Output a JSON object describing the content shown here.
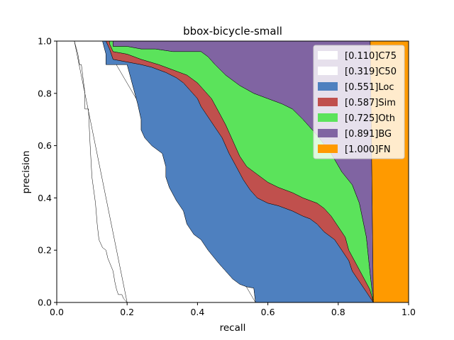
{
  "chart_data": {
    "type": "area",
    "title": "bbox-bicycle-small",
    "xlabel": "recall",
    "ylabel": "precision",
    "xlim": [
      0,
      1
    ],
    "ylim": [
      0,
      1
    ],
    "x_ticks": [
      "0.0",
      "0.2",
      "0.4",
      "0.6",
      "0.8",
      "1.0"
    ],
    "y_ticks": [
      "0.0",
      "0.2",
      "0.4",
      "0.6",
      "0.8",
      "1.0"
    ],
    "grid": false,
    "legend_position": "top-right",
    "series": [
      {
        "name": "[0.110]C75",
        "color": "#ffffff",
        "points": [
          [
            0.05,
            1.0
          ],
          [
            0.06,
            0.95
          ],
          [
            0.065,
            0.91
          ],
          [
            0.07,
            0.91
          ],
          [
            0.08,
            0.8
          ],
          [
            0.08,
            0.74
          ],
          [
            0.09,
            0.74
          ],
          [
            0.095,
            0.6
          ],
          [
            0.1,
            0.48
          ],
          [
            0.11,
            0.38
          ],
          [
            0.115,
            0.3
          ],
          [
            0.12,
            0.24
          ],
          [
            0.13,
            0.21
          ],
          [
            0.14,
            0.2
          ],
          [
            0.145,
            0.17
          ],
          [
            0.16,
            0.12
          ],
          [
            0.165,
            0.08
          ],
          [
            0.17,
            0.05
          ],
          [
            0.175,
            0.03
          ],
          [
            0.185,
            0.03
          ],
          [
            0.19,
            0.015
          ],
          [
            0.2,
            0.0
          ]
        ]
      },
      {
        "name": "[0.319]C50",
        "color": "#ffffff",
        "points": [
          [
            0.13,
            1.0
          ],
          [
            0.14,
            0.95
          ],
          [
            0.14,
            0.91
          ],
          [
            0.2,
            0.91
          ],
          [
            0.21,
            0.86
          ],
          [
            0.22,
            0.81
          ],
          [
            0.23,
            0.76
          ],
          [
            0.24,
            0.7
          ],
          [
            0.24,
            0.66
          ],
          [
            0.25,
            0.63
          ],
          [
            0.27,
            0.6
          ],
          [
            0.3,
            0.57
          ],
          [
            0.31,
            0.52
          ],
          [
            0.31,
            0.48
          ],
          [
            0.32,
            0.44
          ],
          [
            0.34,
            0.39
          ],
          [
            0.36,
            0.35
          ],
          [
            0.37,
            0.3
          ],
          [
            0.39,
            0.26
          ],
          [
            0.41,
            0.24
          ],
          [
            0.43,
            0.2
          ],
          [
            0.46,
            0.15
          ],
          [
            0.48,
            0.12
          ],
          [
            0.5,
            0.09
          ],
          [
            0.52,
            0.07
          ],
          [
            0.54,
            0.06
          ],
          [
            0.56,
            0.055
          ],
          [
            0.565,
            0.0
          ]
        ]
      },
      {
        "name": "[0.551]Loc",
        "color": "#4e80bf",
        "points": [
          [
            0.13,
            1.0
          ],
          [
            0.14,
            0.95
          ],
          [
            0.14,
            0.91
          ],
          [
            0.2,
            0.91
          ],
          [
            0.21,
            0.86
          ],
          [
            0.22,
            0.81
          ],
          [
            0.23,
            0.76
          ],
          [
            0.24,
            0.7
          ],
          [
            0.24,
            0.66
          ],
          [
            0.25,
            0.63
          ],
          [
            0.27,
            0.6
          ],
          [
            0.3,
            0.57
          ],
          [
            0.31,
            0.52
          ],
          [
            0.31,
            0.48
          ],
          [
            0.32,
            0.44
          ],
          [
            0.34,
            0.39
          ],
          [
            0.36,
            0.35
          ],
          [
            0.37,
            0.3
          ],
          [
            0.39,
            0.26
          ],
          [
            0.41,
            0.24
          ],
          [
            0.43,
            0.2
          ],
          [
            0.46,
            0.15
          ],
          [
            0.48,
            0.12
          ],
          [
            0.5,
            0.09
          ],
          [
            0.52,
            0.07
          ],
          [
            0.54,
            0.06
          ],
          [
            0.56,
            0.055
          ],
          [
            0.565,
            0.0
          ],
          [
            0.9,
            0.0
          ],
          [
            0.89,
            0.02
          ],
          [
            0.88,
            0.04
          ],
          [
            0.86,
            0.08
          ],
          [
            0.84,
            0.12
          ],
          [
            0.83,
            0.16
          ],
          [
            0.81,
            0.2
          ],
          [
            0.79,
            0.24
          ],
          [
            0.76,
            0.27
          ],
          [
            0.74,
            0.3
          ],
          [
            0.72,
            0.32
          ],
          [
            0.7,
            0.33
          ],
          [
            0.67,
            0.35
          ],
          [
            0.63,
            0.37
          ],
          [
            0.6,
            0.38
          ],
          [
            0.57,
            0.4
          ],
          [
            0.55,
            0.43
          ],
          [
            0.53,
            0.47
          ],
          [
            0.51,
            0.52
          ],
          [
            0.49,
            0.57
          ],
          [
            0.47,
            0.63
          ],
          [
            0.45,
            0.67
          ],
          [
            0.43,
            0.71
          ],
          [
            0.41,
            0.75
          ],
          [
            0.4,
            0.78
          ],
          [
            0.38,
            0.81
          ],
          [
            0.36,
            0.84
          ],
          [
            0.34,
            0.86
          ],
          [
            0.31,
            0.88
          ],
          [
            0.27,
            0.9
          ],
          [
            0.24,
            0.91
          ],
          [
            0.2,
            0.92
          ],
          [
            0.16,
            0.93
          ],
          [
            0.15,
            0.97
          ],
          [
            0.14,
            1.0
          ]
        ]
      },
      {
        "name": "[0.587]Sim",
        "color": "#c0504d",
        "points": [
          [
            0.14,
            1.0
          ],
          [
            0.15,
            0.97
          ],
          [
            0.16,
            0.93
          ],
          [
            0.2,
            0.92
          ],
          [
            0.24,
            0.91
          ],
          [
            0.27,
            0.9
          ],
          [
            0.31,
            0.88
          ],
          [
            0.34,
            0.86
          ],
          [
            0.36,
            0.84
          ],
          [
            0.38,
            0.81
          ],
          [
            0.4,
            0.78
          ],
          [
            0.41,
            0.75
          ],
          [
            0.43,
            0.71
          ],
          [
            0.45,
            0.67
          ],
          [
            0.47,
            0.63
          ],
          [
            0.49,
            0.57
          ],
          [
            0.51,
            0.52
          ],
          [
            0.53,
            0.47
          ],
          [
            0.55,
            0.43
          ],
          [
            0.57,
            0.4
          ],
          [
            0.6,
            0.38
          ],
          [
            0.63,
            0.37
          ],
          [
            0.67,
            0.35
          ],
          [
            0.7,
            0.33
          ],
          [
            0.72,
            0.32
          ],
          [
            0.74,
            0.3
          ],
          [
            0.76,
            0.27
          ],
          [
            0.79,
            0.24
          ],
          [
            0.81,
            0.2
          ],
          [
            0.83,
            0.16
          ],
          [
            0.84,
            0.12
          ],
          [
            0.86,
            0.08
          ],
          [
            0.88,
            0.04
          ],
          [
            0.89,
            0.02
          ],
          [
            0.9,
            0.0
          ],
          [
            0.89,
            0.05
          ],
          [
            0.87,
            0.1
          ],
          [
            0.85,
            0.15
          ],
          [
            0.83,
            0.2
          ],
          [
            0.82,
            0.25
          ],
          [
            0.8,
            0.29
          ],
          [
            0.78,
            0.33
          ],
          [
            0.76,
            0.36
          ],
          [
            0.74,
            0.38
          ],
          [
            0.7,
            0.4
          ],
          [
            0.67,
            0.42
          ],
          [
            0.63,
            0.44
          ],
          [
            0.6,
            0.46
          ],
          [
            0.57,
            0.49
          ],
          [
            0.54,
            0.52
          ],
          [
            0.52,
            0.56
          ],
          [
            0.5,
            0.62
          ],
          [
            0.48,
            0.68
          ],
          [
            0.46,
            0.73
          ],
          [
            0.44,
            0.78
          ],
          [
            0.42,
            0.81
          ],
          [
            0.4,
            0.84
          ],
          [
            0.37,
            0.87
          ],
          [
            0.33,
            0.89
          ],
          [
            0.29,
            0.91
          ],
          [
            0.24,
            0.93
          ],
          [
            0.2,
            0.95
          ],
          [
            0.16,
            0.96
          ],
          [
            0.15,
            0.99
          ],
          [
            0.15,
            1.0
          ]
        ]
      },
      {
        "name": "[0.725]Oth",
        "color": "#5be35b",
        "points": [
          [
            0.15,
            1.0
          ],
          [
            0.15,
            0.99
          ],
          [
            0.16,
            0.96
          ],
          [
            0.2,
            0.95
          ],
          [
            0.24,
            0.93
          ],
          [
            0.29,
            0.91
          ],
          [
            0.33,
            0.89
          ],
          [
            0.37,
            0.87
          ],
          [
            0.4,
            0.84
          ],
          [
            0.42,
            0.81
          ],
          [
            0.44,
            0.78
          ],
          [
            0.46,
            0.73
          ],
          [
            0.48,
            0.68
          ],
          [
            0.5,
            0.62
          ],
          [
            0.52,
            0.56
          ],
          [
            0.54,
            0.52
          ],
          [
            0.57,
            0.49
          ],
          [
            0.6,
            0.46
          ],
          [
            0.63,
            0.44
          ],
          [
            0.67,
            0.42
          ],
          [
            0.7,
            0.4
          ],
          [
            0.74,
            0.38
          ],
          [
            0.76,
            0.36
          ],
          [
            0.78,
            0.33
          ],
          [
            0.8,
            0.29
          ],
          [
            0.82,
            0.25
          ],
          [
            0.83,
            0.2
          ],
          [
            0.85,
            0.15
          ],
          [
            0.87,
            0.1
          ],
          [
            0.89,
            0.05
          ],
          [
            0.9,
            0.0
          ],
          [
            0.89,
            0.12
          ],
          [
            0.88,
            0.25
          ],
          [
            0.86,
            0.38
          ],
          [
            0.84,
            0.45
          ],
          [
            0.81,
            0.5
          ],
          [
            0.78,
            0.57
          ],
          [
            0.74,
            0.64
          ],
          [
            0.7,
            0.7
          ],
          [
            0.67,
            0.74
          ],
          [
            0.64,
            0.76
          ],
          [
            0.6,
            0.78
          ],
          [
            0.56,
            0.8
          ],
          [
            0.52,
            0.83
          ],
          [
            0.48,
            0.87
          ],
          [
            0.45,
            0.91
          ],
          [
            0.43,
            0.94
          ],
          [
            0.41,
            0.96
          ],
          [
            0.33,
            0.96
          ],
          [
            0.28,
            0.97
          ],
          [
            0.24,
            0.97
          ],
          [
            0.2,
            0.98
          ],
          [
            0.16,
            0.98
          ],
          [
            0.16,
            1.0
          ]
        ]
      },
      {
        "name": "[0.891]BG",
        "color": "#8064a2",
        "points": [
          [
            0.16,
            1.0
          ],
          [
            0.16,
            0.98
          ],
          [
            0.2,
            0.98
          ],
          [
            0.24,
            0.97
          ],
          [
            0.28,
            0.97
          ],
          [
            0.33,
            0.96
          ],
          [
            0.41,
            0.96
          ],
          [
            0.43,
            0.94
          ],
          [
            0.45,
            0.91
          ],
          [
            0.48,
            0.87
          ],
          [
            0.52,
            0.83
          ],
          [
            0.56,
            0.8
          ],
          [
            0.6,
            0.78
          ],
          [
            0.64,
            0.76
          ],
          [
            0.67,
            0.74
          ],
          [
            0.7,
            0.7
          ],
          [
            0.74,
            0.64
          ],
          [
            0.78,
            0.57
          ],
          [
            0.81,
            0.5
          ],
          [
            0.84,
            0.45
          ],
          [
            0.86,
            0.38
          ],
          [
            0.88,
            0.25
          ],
          [
            0.89,
            0.12
          ],
          [
            0.9,
            0.0
          ],
          [
            0.891,
            1.0
          ]
        ]
      },
      {
        "name": "[1.000]FN",
        "color": "#ff9a00",
        "points": [
          [
            0.891,
            1.0
          ],
          [
            0.9,
            0.0
          ],
          [
            1.0,
            0.0
          ],
          [
            1.0,
            1.0
          ]
        ]
      }
    ]
  }
}
